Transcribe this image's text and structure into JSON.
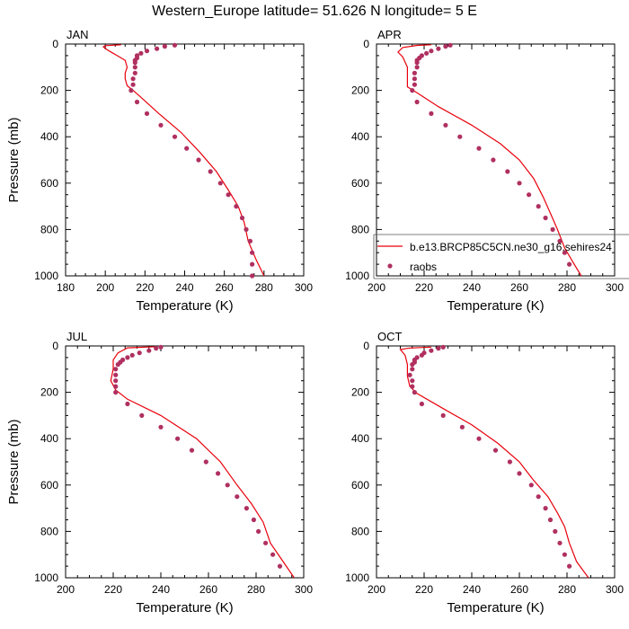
{
  "figure": {
    "title": "Western_Europe  latitude= 51.626 N longitude= 5 E"
  },
  "colors": {
    "model_line": "#e8000b",
    "obs_marker": "#b03060",
    "axis": "#000000"
  },
  "legend": {
    "panel": "APR",
    "placement": "right, overlapping panel edge",
    "entries": [
      {
        "label": "b.e13.BRCP85C5CN.ne30_g16.sehires24",
        "style": "line"
      },
      {
        "label": "raobs",
        "style": "marker"
      }
    ]
  },
  "chart_data": [
    {
      "type": "line",
      "panel_label": "JAN",
      "xlabel": "Temperature (K)",
      "ylabel": "Pressure (mb)",
      "xlim": [
        180,
        300
      ],
      "ylim": [
        1000,
        0
      ],
      "y_reversed": true,
      "xticks": [
        180,
        200,
        220,
        240,
        260,
        280,
        300
      ],
      "yticks": [
        0,
        200,
        400,
        600,
        800,
        1000
      ],
      "series": [
        {
          "style": "line",
          "points": [
            [
              208,
              3
            ],
            [
              200,
              7
            ],
            [
              199,
              12
            ],
            [
              201,
              25
            ],
            [
              206,
              50
            ],
            [
              210,
              70
            ],
            [
              211,
              100
            ],
            [
              210,
              125
            ],
            [
              210,
              150
            ],
            [
              211,
              180
            ],
            [
              214,
              200
            ],
            [
              218,
              230
            ],
            [
              227,
              300
            ],
            [
              238,
              380
            ],
            [
              248,
              470
            ],
            [
              256,
              550
            ],
            [
              262,
              630
            ],
            [
              267,
              700
            ],
            [
              270,
              770
            ],
            [
              272,
              850
            ],
            [
              276,
              930
            ],
            [
              280,
              1000
            ]
          ]
        },
        {
          "style": "marker",
          "points": [
            [
              235,
              5
            ],
            [
              230,
              10
            ],
            [
              226,
              20
            ],
            [
              221,
              30
            ],
            [
              218,
              40
            ],
            [
              216,
              50
            ],
            [
              216,
              60
            ],
            [
              215,
              70
            ],
            [
              215,
              80
            ],
            [
              215,
              100
            ],
            [
              215,
              125
            ],
            [
              214,
              150
            ],
            [
              214,
              175
            ],
            [
              213,
              200
            ],
            [
              216,
              250
            ],
            [
              221,
              300
            ],
            [
              228,
              350
            ],
            [
              235,
              400
            ],
            [
              241,
              450
            ],
            [
              247,
              500
            ],
            [
              253,
              550
            ],
            [
              258,
              600
            ],
            [
              262,
              650
            ],
            [
              266,
              700
            ],
            [
              269,
              750
            ],
            [
              271,
              800
            ],
            [
              273,
              850
            ],
            [
              274,
              900
            ],
            [
              274,
              950
            ],
            [
              274,
              1000
            ]
          ]
        }
      ]
    },
    {
      "type": "line",
      "panel_label": "APR",
      "xlabel": "Temperature (K)",
      "ylabel": "",
      "xlim": [
        200,
        300
      ],
      "ylim": [
        1000,
        0
      ],
      "y_reversed": true,
      "xticks": [
        200,
        220,
        240,
        260,
        280,
        300
      ],
      "yticks": [
        0,
        200,
        400,
        600,
        800,
        1000
      ],
      "series": [
        {
          "style": "line",
          "points": [
            [
              223,
              3
            ],
            [
              217,
              6
            ],
            [
              211,
              15
            ],
            [
              209,
              35
            ],
            [
              211,
              55
            ],
            [
              213,
              100
            ],
            [
              213,
              150
            ],
            [
              213,
              185
            ],
            [
              217,
              210
            ],
            [
              226,
              270
            ],
            [
              240,
              350
            ],
            [
              252,
              430
            ],
            [
              260,
              500
            ],
            [
              266,
              580
            ],
            [
              270,
              660
            ],
            [
              273,
              730
            ],
            [
              276,
              800
            ],
            [
              279,
              880
            ],
            [
              283,
              950
            ],
            [
              286,
              1000
            ]
          ]
        },
        {
          "style": "marker",
          "points": [
            [
              231,
              5
            ],
            [
              229,
              10
            ],
            [
              226,
              20
            ],
            [
              223,
              30
            ],
            [
              221,
              40
            ],
            [
              219,
              50
            ],
            [
              218,
              60
            ],
            [
              217,
              70
            ],
            [
              217,
              80
            ],
            [
              217,
              100
            ],
            [
              216,
              125
            ],
            [
              216,
              150
            ],
            [
              216,
              175
            ],
            [
              215,
              200
            ],
            [
              217,
              250
            ],
            [
              223,
              300
            ],
            [
              229,
              350
            ],
            [
              235,
              400
            ],
            [
              243,
              450
            ],
            [
              249,
              500
            ],
            [
              255,
              550
            ],
            [
              260,
              600
            ],
            [
              264,
              650
            ],
            [
              268,
              700
            ],
            [
              271,
              750
            ],
            [
              274,
              800
            ],
            [
              277,
              850
            ],
            [
              279,
              900
            ],
            [
              281,
              950
            ]
          ]
        }
      ]
    },
    {
      "type": "line",
      "panel_label": "JUL",
      "xlabel": "Temperature (K)",
      "ylabel": "Pressure (mb)",
      "xlim": [
        200,
        300
      ],
      "ylim": [
        1000,
        0
      ],
      "y_reversed": true,
      "xticks": [
        200,
        220,
        240,
        260,
        280,
        300
      ],
      "yticks": [
        0,
        200,
        400,
        600,
        800,
        1000
      ],
      "series": [
        {
          "style": "line",
          "points": [
            [
              238,
              3
            ],
            [
              226,
              8
            ],
            [
              222,
              30
            ],
            [
              220,
              60
            ],
            [
              220,
              100
            ],
            [
              219,
              150
            ],
            [
              221,
              190
            ],
            [
              226,
              230
            ],
            [
              240,
              300
            ],
            [
              255,
              400
            ],
            [
              265,
              500
            ],
            [
              272,
              600
            ],
            [
              278,
              680
            ],
            [
              283,
              760
            ],
            [
              286,
              850
            ],
            [
              292,
              940
            ],
            [
              296,
              1000
            ]
          ]
        },
        {
          "style": "marker",
          "points": [
            [
              240,
              5
            ],
            [
              238,
              10
            ],
            [
              235,
              20
            ],
            [
              231,
              30
            ],
            [
              228,
              40
            ],
            [
              226,
              50
            ],
            [
              224,
              60
            ],
            [
              223,
              70
            ],
            [
              222,
              80
            ],
            [
              221,
              100
            ],
            [
              221,
              125
            ],
            [
              221,
              150
            ],
            [
              221,
              175
            ],
            [
              221,
              200
            ],
            [
              226,
              250
            ],
            [
              232,
              300
            ],
            [
              240,
              350
            ],
            [
              247,
              400
            ],
            [
              253,
              450
            ],
            [
              259,
              500
            ],
            [
              264,
              550
            ],
            [
              268,
              600
            ],
            [
              272,
              650
            ],
            [
              276,
              700
            ],
            [
              279,
              750
            ],
            [
              281,
              800
            ],
            [
              284,
              850
            ],
            [
              287,
              900
            ],
            [
              290,
              950
            ]
          ]
        }
      ]
    },
    {
      "type": "line",
      "panel_label": "OCT",
      "xlabel": "Temperature (K)",
      "ylabel": "",
      "xlim": [
        200,
        300
      ],
      "ylim": [
        1000,
        0
      ],
      "y_reversed": true,
      "xticks": [
        200,
        220,
        240,
        260,
        280,
        300
      ],
      "yticks": [
        0,
        200,
        400,
        600,
        800,
        1000
      ],
      "series": [
        {
          "style": "line",
          "points": [
            [
              223,
              5
            ],
            [
              214,
              9
            ],
            [
              210,
              15
            ],
            [
              212,
              40
            ],
            [
              213,
              80
            ],
            [
              213,
              130
            ],
            [
              214,
              175
            ],
            [
              217,
              205
            ],
            [
              228,
              270
            ],
            [
              240,
              340
            ],
            [
              251,
              420
            ],
            [
              260,
              500
            ],
            [
              266,
              580
            ],
            [
              272,
              650
            ],
            [
              276,
              720
            ],
            [
              279,
              780
            ],
            [
              281,
              850
            ],
            [
              284,
              930
            ],
            [
              289,
              1000
            ]
          ]
        },
        {
          "style": "marker",
          "points": [
            [
              228,
              5
            ],
            [
              226,
              10
            ],
            [
              223,
              20
            ],
            [
              220,
              30
            ],
            [
              219,
              40
            ],
            [
              217,
              50
            ],
            [
              216,
              60
            ],
            [
              216,
              70
            ],
            [
              215,
              80
            ],
            [
              215,
              100
            ],
            [
              214,
              125
            ],
            [
              215,
              150
            ],
            [
              215,
              175
            ],
            [
              216,
              200
            ],
            [
              219,
              250
            ],
            [
              228,
              300
            ],
            [
              236,
              350
            ],
            [
              243,
              400
            ],
            [
              250,
              450
            ],
            [
              256,
              500
            ],
            [
              260,
              550
            ],
            [
              265,
              600
            ],
            [
              268,
              650
            ],
            [
              271,
              700
            ],
            [
              273,
              750
            ],
            [
              275,
              800
            ],
            [
              277,
              850
            ],
            [
              279,
              900
            ],
            [
              281,
              950
            ]
          ]
        }
      ]
    }
  ]
}
